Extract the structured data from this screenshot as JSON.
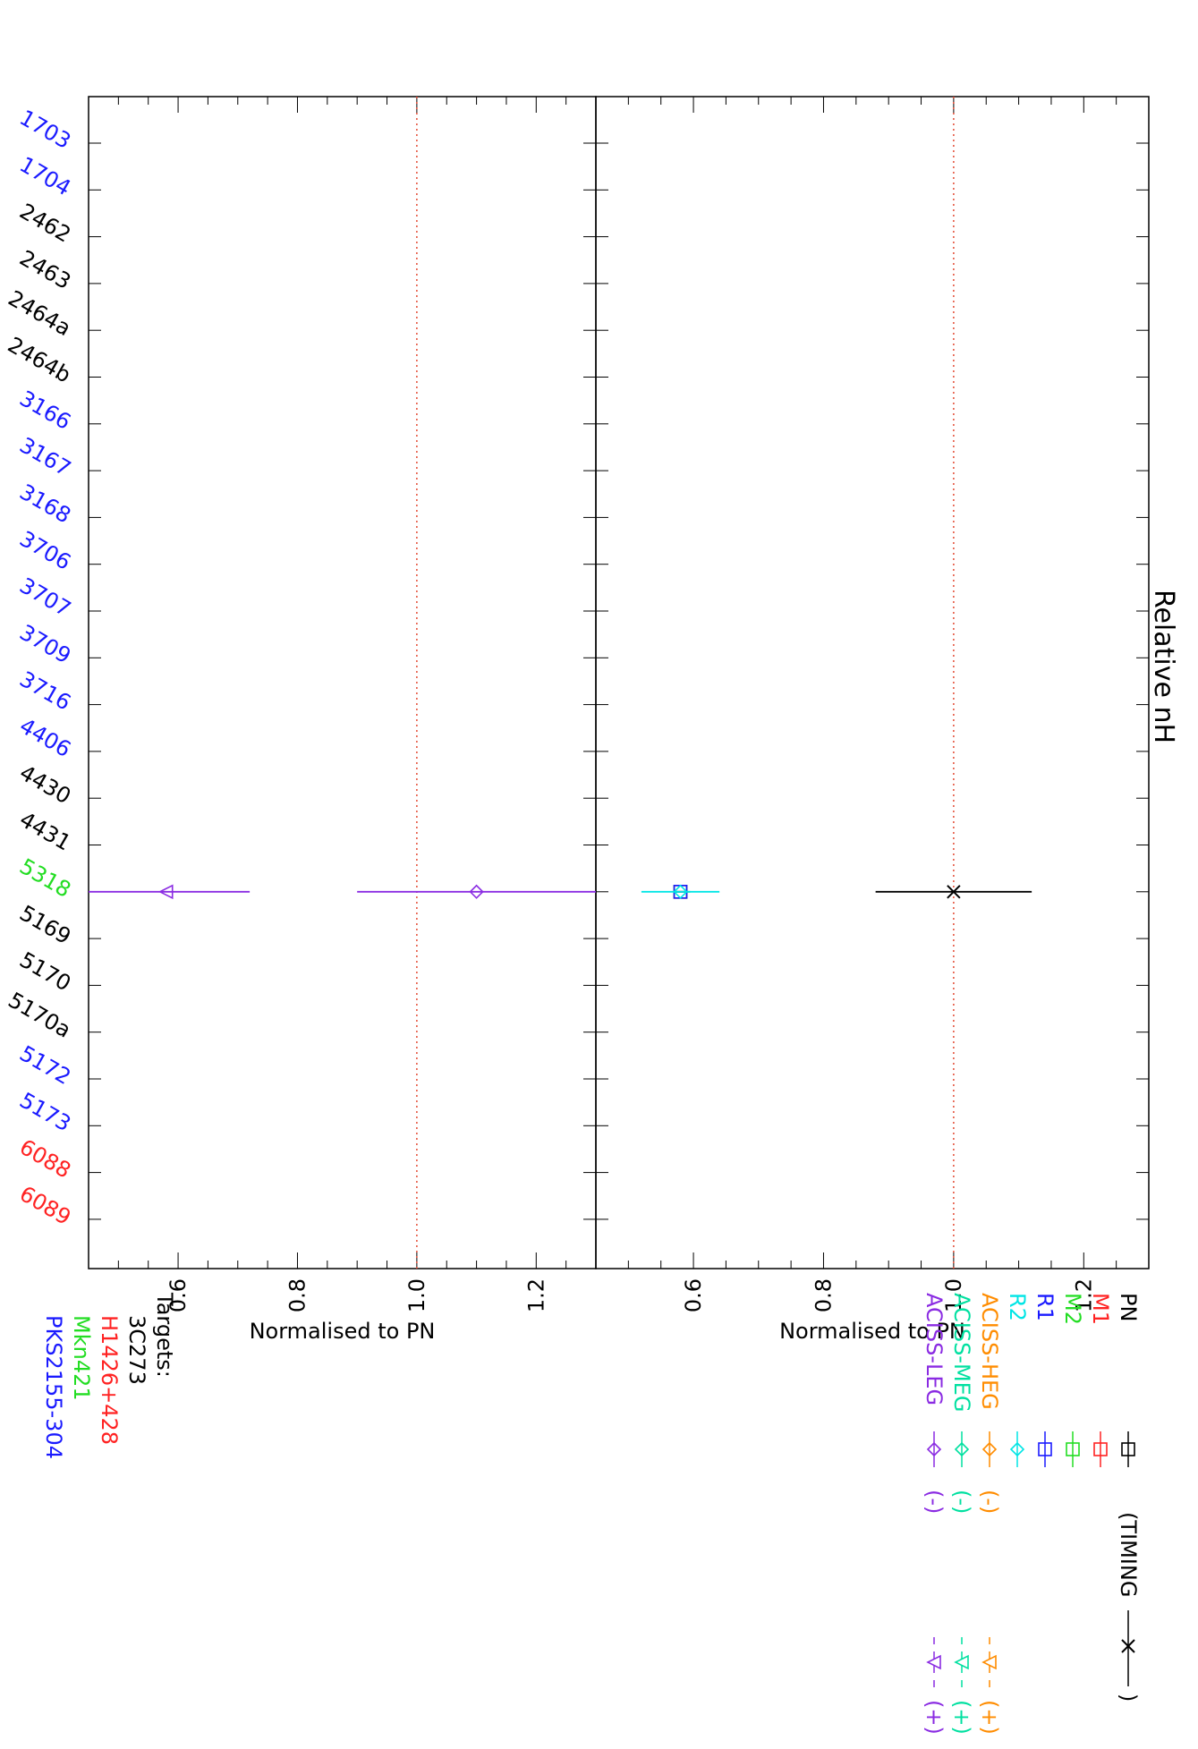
{
  "chart_data": {
    "type": "scatter",
    "title": "Relative nH",
    "x_categories": [
      {
        "label": "1703",
        "color": "#1a1aff"
      },
      {
        "label": "1704",
        "color": "#1a1aff"
      },
      {
        "label": "2462",
        "color": "#000000"
      },
      {
        "label": "2463",
        "color": "#000000"
      },
      {
        "label": "2464a",
        "color": "#000000"
      },
      {
        "label": "2464b",
        "color": "#000000"
      },
      {
        "label": "3166",
        "color": "#1a1aff"
      },
      {
        "label": "3167",
        "color": "#1a1aff"
      },
      {
        "label": "3168",
        "color": "#1a1aff"
      },
      {
        "label": "3706",
        "color": "#1a1aff"
      },
      {
        "label": "3707",
        "color": "#1a1aff"
      },
      {
        "label": "3709",
        "color": "#1a1aff"
      },
      {
        "label": "3716",
        "color": "#1a1aff"
      },
      {
        "label": "4406",
        "color": "#1a1aff"
      },
      {
        "label": "4430",
        "color": "#000000"
      },
      {
        "label": "4431",
        "color": "#000000"
      },
      {
        "label": "5318",
        "color": "#22dd22"
      },
      {
        "label": "5169",
        "color": "#000000"
      },
      {
        "label": "5170",
        "color": "#000000"
      },
      {
        "label": "5170a",
        "color": "#000000"
      },
      {
        "label": "5172",
        "color": "#1a1aff"
      },
      {
        "label": "5173",
        "color": "#1a1aff"
      },
      {
        "label": "6088",
        "color": "#ff2222"
      },
      {
        "label": "6089",
        "color": "#ff2222"
      }
    ],
    "panels": [
      {
        "id": "top",
        "ylabel": "Normalised to PN",
        "ylim": [
          0.45,
          1.3
        ],
        "yticks": [
          "0.6",
          "0.8",
          "1.0",
          "1.2"
        ],
        "reference_line": 1.0,
        "points": [
          {
            "series": "PN TIMING",
            "category": "5318",
            "value": 1.0,
            "err_low": 0.88,
            "err_high": 1.12,
            "marker": "x",
            "color": "#000000"
          },
          {
            "series": "M1",
            "category": "5318",
            "value": 0.58,
            "err_low": 0.57,
            "err_high": 0.59,
            "marker": "square",
            "color": "#ff2222"
          },
          {
            "series": "M2",
            "category": "5318",
            "value": 0.58,
            "err_low": 0.57,
            "err_high": 0.595,
            "marker": "square",
            "color": "#22dd22"
          },
          {
            "series": "R1",
            "category": "5318",
            "value": 0.58,
            "err_low": 0.57,
            "err_high": 0.59,
            "marker": "square",
            "color": "#1a1aff"
          },
          {
            "series": "R2",
            "category": "5318",
            "value": 0.58,
            "err_low": 0.52,
            "err_high": 0.64,
            "marker": "diamond",
            "color": "#00e5e5"
          }
        ]
      },
      {
        "id": "bottom",
        "ylabel": "Normalised to PN",
        "ylim": [
          0.45,
          1.3
        ],
        "yticks": [
          "0.6",
          "0.8",
          "1.0",
          "1.2"
        ],
        "reference_line": 1.0,
        "points": [
          {
            "series": "ACISS-LEG (-)",
            "category": "5318",
            "value": 1.1,
            "err_low": 0.9,
            "err_high": 1.3,
            "marker": "diamond",
            "color": "#8a2be2"
          },
          {
            "series": "ACISS-LEG (+)",
            "category": "5318",
            "value": 0.58,
            "err_low": 0.45,
            "err_high": 0.72,
            "marker": "triangle",
            "color": "#8a2be2"
          }
        ]
      }
    ],
    "legend": {
      "items": [
        {
          "name": "PN",
          "color": "#000000",
          "marker": "square",
          "minus_text": "",
          "timing_text": "(TIMING",
          "timing_close": ")",
          "plus_text": ""
        },
        {
          "name": "M1",
          "color": "#ff2222",
          "marker": "square",
          "minus_text": "",
          "timing_text": "",
          "timing_close": "",
          "plus_text": ""
        },
        {
          "name": "M2",
          "color": "#22dd22",
          "marker": "square",
          "minus_text": "",
          "timing_text": "",
          "timing_close": "",
          "plus_text": ""
        },
        {
          "name": "R1",
          "color": "#1a1aff",
          "marker": "square",
          "minus_text": "",
          "timing_text": "",
          "timing_close": "",
          "plus_text": ""
        },
        {
          "name": "R2",
          "color": "#00e5e5",
          "marker": "diamond",
          "minus_text": "",
          "timing_text": "",
          "timing_close": "",
          "plus_text": ""
        },
        {
          "name": "ACISS-HEG",
          "color": "#ff8c00",
          "marker": "diamond",
          "minus_text": "(-)",
          "timing_text": "",
          "timing_close": "",
          "plus_text": "(+)"
        },
        {
          "name": "ACISS-MEG",
          "color": "#00e0a0",
          "marker": "diamond",
          "minus_text": "(-)",
          "timing_text": "",
          "timing_close": "",
          "plus_text": "(+)"
        },
        {
          "name": "ACISS-LEG",
          "color": "#8a2be2",
          "marker": "diamond",
          "minus_text": "(-)",
          "timing_text": "",
          "timing_close": "",
          "plus_text": "(+)"
        }
      ]
    },
    "targets": {
      "heading": "Targets:",
      "items": [
        {
          "name": "3C273",
          "color": "#000000"
        },
        {
          "name": "H1426+428",
          "color": "#ff2222"
        },
        {
          "name": "Mkn421",
          "color": "#22dd22"
        },
        {
          "name": "PKS2155-304",
          "color": "#1a1aff"
        }
      ]
    }
  }
}
